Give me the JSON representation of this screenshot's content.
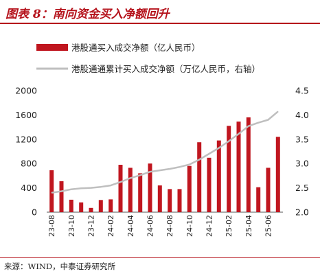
{
  "header": {
    "title": "图表 8：南向资金买入净额回升"
  },
  "footer": {
    "source": "来源：WIND，中泰证券研究所"
  },
  "chart_data": {
    "type": "bar",
    "categories": [
      "23-08",
      "23-09",
      "23-10",
      "23-11",
      "23-12",
      "24-01",
      "24-02",
      "24-03",
      "24-04",
      "24-05",
      "24-06",
      "24-07",
      "24-08",
      "24-09",
      "24-10",
      "24-11",
      "24-12",
      "25-01",
      "25-02",
      "25-03",
      "25-04",
      "25-05",
      "25-06",
      "25-07"
    ],
    "x_tick_labels": [
      "23-08",
      "23-10",
      "23-12",
      "24-02",
      "24-04",
      "24-06",
      "24-08",
      "24-10",
      "24-12",
      "25-02",
      "25-04",
      "25-06"
    ],
    "series": [
      {
        "name": "港股通买入成交净额（亿人民币）",
        "type": "bar",
        "axis": "left",
        "color": "#c0161f",
        "values": [
          690,
          510,
          205,
          160,
          70,
          200,
          210,
          780,
          730,
          640,
          800,
          440,
          380,
          380,
          760,
          1150,
          895,
          1180,
          1420,
          1490,
          1560,
          410,
          730,
          1240
        ]
      },
      {
        "name": "港股通通累计买入成交净额（万亿人民币，右轴）",
        "type": "line",
        "axis": "right",
        "color": "#bfbfbf",
        "values": [
          2.4,
          2.43,
          2.47,
          2.49,
          2.5,
          2.52,
          2.55,
          2.62,
          2.7,
          2.76,
          2.83,
          2.86,
          2.89,
          2.93,
          2.98,
          3.08,
          3.2,
          3.32,
          3.46,
          3.61,
          3.77,
          3.84,
          3.9,
          4.07
        ]
      }
    ],
    "y_left": {
      "ticks": [
        0,
        400,
        800,
        1200,
        1600,
        2000
      ],
      "ylim": [
        0,
        2000
      ]
    },
    "y_right": {
      "ticks": [
        "2.0",
        "2.5",
        "3.0",
        "3.5",
        "4.0",
        "4.5"
      ],
      "ylim": [
        2.0,
        4.5
      ]
    },
    "legend_position": "top"
  }
}
